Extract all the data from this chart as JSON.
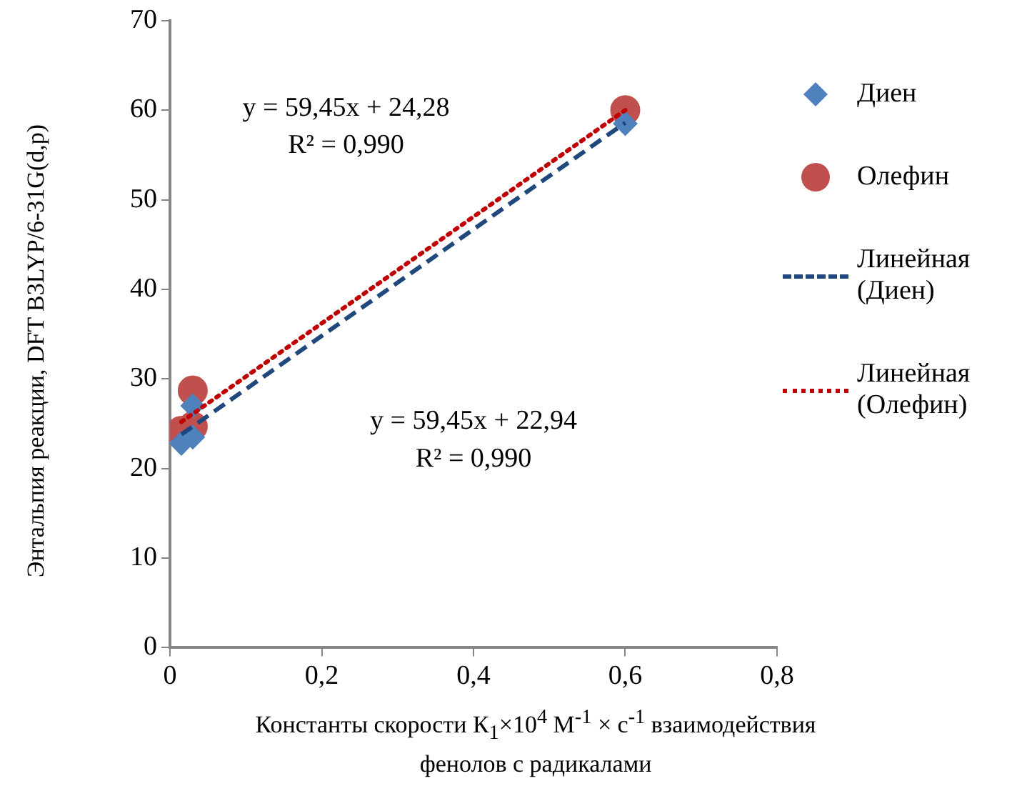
{
  "chart_data": {
    "type": "scatter",
    "xlabel": "Константы скорости  К$_{1}$×10$^{4}$ М$^{-1}$ × с$^{-1}$  взаимодействия фенолов с радикалами",
    "ylabel": "Энтальпия реакции, DFT B3LYP/6-31G(d,p)",
    "xlim": [
      0,
      0.8
    ],
    "xticks": [
      {
        "value": 0,
        "label": "0"
      },
      {
        "value": 0.2,
        "label": "0,2"
      },
      {
        "value": 0.4,
        "label": "0,4"
      },
      {
        "value": 0.6,
        "label": "0,6"
      },
      {
        "value": 0.8,
        "label": "0,8"
      }
    ],
    "ylim": [
      0,
      70
    ],
    "yticks": [
      0,
      10,
      20,
      30,
      40,
      50,
      60,
      70
    ],
    "grid": false,
    "legend": "right",
    "series": [
      {
        "name": "Диен",
        "color": "#4f81bd",
        "marker": "diamond",
        "x": [
          0.015,
          0.03,
          0.03,
          0.6
        ],
        "values": [
          22.8,
          23.5,
          27,
          58.5
        ]
      },
      {
        "name": "Олефин",
        "color": "#c0504d",
        "marker": "circle",
        "x": [
          0.015,
          0.03,
          0.03,
          0.6
        ],
        "values": [
          24.2,
          24.7,
          28.7,
          60
        ]
      },
      {
        "name": "Линейная (Диен)",
        "type": "line",
        "color": "#1f497d",
        "marker": "none",
        "line_style": "dashed",
        "x": [
          0.015,
          0.6
        ],
        "values": [
          23.8,
          58.6
        ]
      },
      {
        "name": "Линейная (Олефин)",
        "type": "line",
        "color": "#c00000",
        "marker": "none",
        "line_style": "dotted",
        "x": [
          0.015,
          0.6
        ],
        "values": [
          25.2,
          60
        ]
      }
    ],
    "annotations": [
      "y = 59,45x + 24,28",
      "R² = 0,990",
      "y = 59,45x + 22,94",
      "R² = 0,990"
    ]
  }
}
